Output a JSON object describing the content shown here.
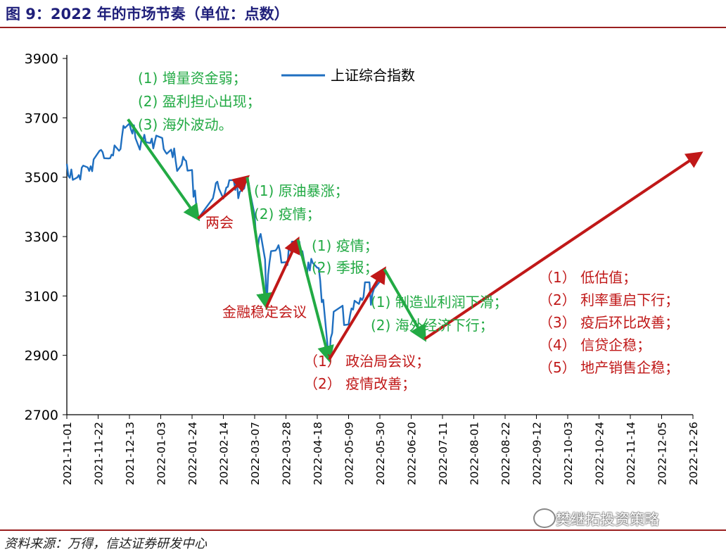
{
  "header": {
    "title": "图 9：2022 年的市场节奏（单位：点数）"
  },
  "footer": {
    "source": "资料来源：万得，信达证券研发中心"
  },
  "watermark": {
    "text": "樊继拓投资策略"
  },
  "colors": {
    "series": "#1f6fc0",
    "green": "#22aa44",
    "red": "#c01818",
    "axis": "#000000"
  },
  "chart_data": {
    "type": "line",
    "title": "",
    "xlabel": "",
    "ylabel": "",
    "ylim": [
      2700,
      3900
    ],
    "yticks": [
      2700,
      2900,
      3100,
      3300,
      3500,
      3700,
      3900
    ],
    "xticks": [
      "2021-11-01",
      "2021-11-22",
      "2021-12-13",
      "2022-01-03",
      "2022-01-24",
      "2022-02-14",
      "2022-03-07",
      "2022-03-28",
      "2022-04-18",
      "2022-05-09",
      "2022-05-30",
      "2022-06-20",
      "2022-07-11",
      "2022-08-01",
      "2022-08-22",
      "2022-09-12",
      "2022-10-03",
      "2022-10-24",
      "2022-11-14",
      "2022-12-05",
      "2022-12-26"
    ],
    "legend": {
      "label": "上证综合指数",
      "position": "top"
    },
    "series": [
      {
        "name": "上证综合指数",
        "points": [
          [
            "2021-11-01",
            3545
          ],
          [
            "2021-11-02",
            3505
          ],
          [
            "2021-11-03",
            3498
          ],
          [
            "2021-11-04",
            3526
          ],
          [
            "2021-11-05",
            3491
          ],
          [
            "2021-11-08",
            3499
          ],
          [
            "2021-11-09",
            3507
          ],
          [
            "2021-11-10",
            3492
          ],
          [
            "2021-11-11",
            3532
          ],
          [
            "2021-11-12",
            3539
          ],
          [
            "2021-11-15",
            3533
          ],
          [
            "2021-11-16",
            3521
          ],
          [
            "2021-11-17",
            3537
          ],
          [
            "2021-11-18",
            3520
          ],
          [
            "2021-11-19",
            3560
          ],
          [
            "2021-11-22",
            3582
          ],
          [
            "2021-11-23",
            3589
          ],
          [
            "2021-11-24",
            3592
          ],
          [
            "2021-11-25",
            3584
          ],
          [
            "2021-11-26",
            3564
          ],
          [
            "2021-11-29",
            3563
          ],
          [
            "2021-11-30",
            3564
          ],
          [
            "2021-12-01",
            3576
          ],
          [
            "2021-12-02",
            3573
          ],
          [
            "2021-12-03",
            3607
          ],
          [
            "2021-12-06",
            3589
          ],
          [
            "2021-12-07",
            3595
          ],
          [
            "2021-12-08",
            3637
          ],
          [
            "2021-12-09",
            3673
          ],
          [
            "2021-12-10",
            3666
          ],
          [
            "2021-12-13",
            3681
          ],
          [
            "2021-12-14",
            3661
          ],
          [
            "2021-12-15",
            3647
          ],
          [
            "2021-12-16",
            3675
          ],
          [
            "2021-12-17",
            3632
          ],
          [
            "2021-12-20",
            3593
          ],
          [
            "2021-12-21",
            3625
          ],
          [
            "2021-12-22",
            3622
          ],
          [
            "2021-12-23",
            3643
          ],
          [
            "2021-12-24",
            3618
          ],
          [
            "2021-12-27",
            3615
          ],
          [
            "2021-12-28",
            3630
          ],
          [
            "2021-12-29",
            3597
          ],
          [
            "2021-12-30",
            3619
          ],
          [
            "2021-12-31",
            3640
          ],
          [
            "2022-01-04",
            3632
          ],
          [
            "2022-01-05",
            3595
          ],
          [
            "2022-01-06",
            3586
          ],
          [
            "2022-01-07",
            3579
          ],
          [
            "2022-01-10",
            3593
          ],
          [
            "2022-01-11",
            3567
          ],
          [
            "2022-01-12",
            3597
          ],
          [
            "2022-01-13",
            3555
          ],
          [
            "2022-01-14",
            3521
          ],
          [
            "2022-01-17",
            3542
          ],
          [
            "2022-01-18",
            3569
          ],
          [
            "2022-01-19",
            3559
          ],
          [
            "2022-01-20",
            3555
          ],
          [
            "2022-01-21",
            3522
          ],
          [
            "2022-01-24",
            3524
          ],
          [
            "2022-01-25",
            3434
          ],
          [
            "2022-01-26",
            3455
          ],
          [
            "2022-01-27",
            3394
          ],
          [
            "2022-01-28",
            3361
          ],
          [
            "2022-02-07",
            3429
          ],
          [
            "2022-02-08",
            3452
          ],
          [
            "2022-02-09",
            3480
          ],
          [
            "2022-02-10",
            3485
          ],
          [
            "2022-02-11",
            3462
          ],
          [
            "2022-02-14",
            3428
          ],
          [
            "2022-02-15",
            3446
          ],
          [
            "2022-02-16",
            3465
          ],
          [
            "2022-02-17",
            3468
          ],
          [
            "2022-02-18",
            3490
          ],
          [
            "2022-02-21",
            3490
          ],
          [
            "2022-02-22",
            3457
          ],
          [
            "2022-02-23",
            3489
          ],
          [
            "2022-02-24",
            3429
          ],
          [
            "2022-02-25",
            3451
          ],
          [
            "2022-02-28",
            3462
          ],
          [
            "2022-03-01",
            3488
          ],
          [
            "2022-03-02",
            3484
          ],
          [
            "2022-03-03",
            3481
          ],
          [
            "2022-03-04",
            3447
          ],
          [
            "2022-03-07",
            3372
          ],
          [
            "2022-03-08",
            3293
          ],
          [
            "2022-03-09",
            3256
          ],
          [
            "2022-03-10",
            3296
          ],
          [
            "2022-03-11",
            3309
          ],
          [
            "2022-03-14",
            3223
          ],
          [
            "2022-03-15",
            3064
          ],
          [
            "2022-03-16",
            3171
          ],
          [
            "2022-03-17",
            3215
          ],
          [
            "2022-03-18",
            3251
          ],
          [
            "2022-03-21",
            3253
          ],
          [
            "2022-03-22",
            3260
          ],
          [
            "2022-03-23",
            3271
          ],
          [
            "2022-03-24",
            3250
          ],
          [
            "2022-03-25",
            3212
          ],
          [
            "2022-03-28",
            3214
          ],
          [
            "2022-03-29",
            3204
          ],
          [
            "2022-03-30",
            3267
          ],
          [
            "2022-03-31",
            3252
          ],
          [
            "2022-04-01",
            3283
          ],
          [
            "2022-04-06",
            3283
          ],
          [
            "2022-04-07",
            3237
          ],
          [
            "2022-04-08",
            3251
          ],
          [
            "2022-04-11",
            3167
          ],
          [
            "2022-04-12",
            3213
          ],
          [
            "2022-04-13",
            3186
          ],
          [
            "2022-04-14",
            3225
          ],
          [
            "2022-04-15",
            3211
          ],
          [
            "2022-04-18",
            3195
          ],
          [
            "2022-04-19",
            3194
          ],
          [
            "2022-04-20",
            3151
          ],
          [
            "2022-04-21",
            3079
          ],
          [
            "2022-04-22",
            3087
          ],
          [
            "2022-04-25",
            2928
          ],
          [
            "2022-04-26",
            2886
          ],
          [
            "2022-04-27",
            2958
          ],
          [
            "2022-04-28",
            2975
          ],
          [
            "2022-04-29",
            3047
          ],
          [
            "2022-05-05",
            3067
          ],
          [
            "2022-05-06",
            3002
          ],
          [
            "2022-05-09",
            3004
          ],
          [
            "2022-05-10",
            3035
          ],
          [
            "2022-05-11",
            3058
          ],
          [
            "2022-05-12",
            3054
          ],
          [
            "2022-05-13",
            3084
          ],
          [
            "2022-05-16",
            3073
          ],
          [
            "2022-05-17",
            3093
          ],
          [
            "2022-05-18",
            3086
          ],
          [
            "2022-05-19",
            3096
          ],
          [
            "2022-05-20",
            3146
          ],
          [
            "2022-05-23",
            3146
          ],
          [
            "2022-05-24",
            3070
          ],
          [
            "2022-05-25",
            3107
          ],
          [
            "2022-05-26",
            3123
          ],
          [
            "2022-05-27",
            3130
          ],
          [
            "2022-05-30",
            3149
          ],
          [
            "2022-05-31",
            3186
          ]
        ]
      }
    ],
    "arrows": [
      {
        "color": "green",
        "from": [
          "2021-12-12",
          3695
        ],
        "to": [
          "2022-01-28",
          3361
        ]
      },
      {
        "color": "red",
        "from": [
          "2022-01-28",
          3361
        ],
        "to": [
          "2022-03-02",
          3500
        ]
      },
      {
        "color": "green",
        "from": [
          "2022-03-02",
          3500
        ],
        "to": [
          "2022-03-15",
          3064
        ]
      },
      {
        "color": "red",
        "from": [
          "2022-03-15",
          3064
        ],
        "to": [
          "2022-04-05",
          3290
        ]
      },
      {
        "color": "green",
        "from": [
          "2022-04-05",
          3290
        ],
        "to": [
          "2022-04-26",
          2886
        ]
      },
      {
        "color": "red",
        "from": [
          "2022-04-26",
          2886
        ],
        "to": [
          "2022-06-02",
          3190
        ]
      },
      {
        "color": "green",
        "from": [
          "2022-06-02",
          3190
        ],
        "to": [
          "2022-06-29",
          2955
        ]
      },
      {
        "color": "red",
        "from": [
          "2022-06-29",
          2955
        ],
        "to": [
          "2022-12-31",
          3580
        ]
      }
    ],
    "annotations": [
      {
        "color": "green",
        "lines": [
          "(1) 增量资金弱；",
          "(2) 盈利担心出现；",
          "(3) 海外波动。"
        ]
      },
      {
        "color": "red",
        "lines": [
          "两会"
        ]
      },
      {
        "color": "green",
        "lines": [
          "(1) 原油暴涨；",
          "(2) 疫情；"
        ]
      },
      {
        "color": "red",
        "lines": [
          "金融稳定会议"
        ]
      },
      {
        "color": "green",
        "lines": [
          "(1) 疫情；",
          "(2) 季报；"
        ]
      },
      {
        "color": "red",
        "lines": [
          "（1） 政治局会议；",
          "（2） 疫情改善；"
        ]
      },
      {
        "color": "green",
        "lines": [
          "(1) 制造业利润下滑；",
          "(2) 海外经济下行；"
        ]
      },
      {
        "color": "red",
        "lines": [
          "（1） 低估值；",
          "（2） 利率重启下行；",
          "（3） 疫后环比改善；",
          "（4） 信贷企稳；",
          "（5） 地产销售企稳；"
        ]
      }
    ]
  }
}
